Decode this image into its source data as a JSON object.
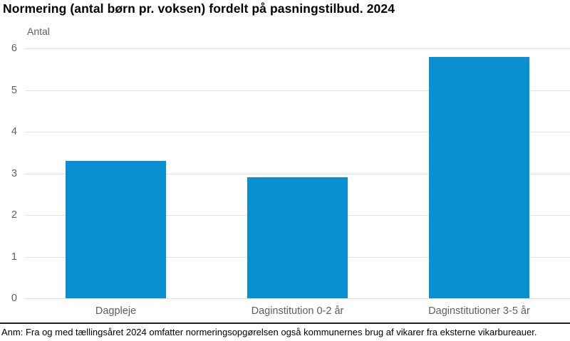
{
  "page": {
    "title": "Normering (antal børn pr. voksen) fordelt på pasningstilbud. 2024",
    "footnote": "Anm: Fra og med tællingsåret 2024 omfatter normeringsopgørelsen også kommunernes brug af vikarer fra eksterne vikarbureauer."
  },
  "chart_data": {
    "type": "bar",
    "title": "Normering (antal børn pr. voksen) fordelt på pasningstilbud. 2024",
    "categories": [
      "Dagpleje",
      "Daginstitution 0-2 år",
      "Daginstitutioner 3-5 år"
    ],
    "values": [
      3.3,
      2.9,
      5.8
    ],
    "xlabel": "",
    "ylabel": "Antal",
    "ylim": [
      0,
      6
    ],
    "yticks": [
      0,
      1,
      2,
      3,
      4,
      5,
      6
    ],
    "grid": true,
    "legend": "none",
    "annotation": "Anm: Fra og med tællingsåret 2024 omfatter normeringsopgørelsen også kommunernes brug af vikarer fra eksterne vikarbureauer.",
    "colors": {
      "bar": "#0890d3",
      "gridline": "#e4e2da",
      "axis_text": "#5f5f58",
      "title_text": "#000000",
      "divider": "#1f1f1f"
    }
  }
}
